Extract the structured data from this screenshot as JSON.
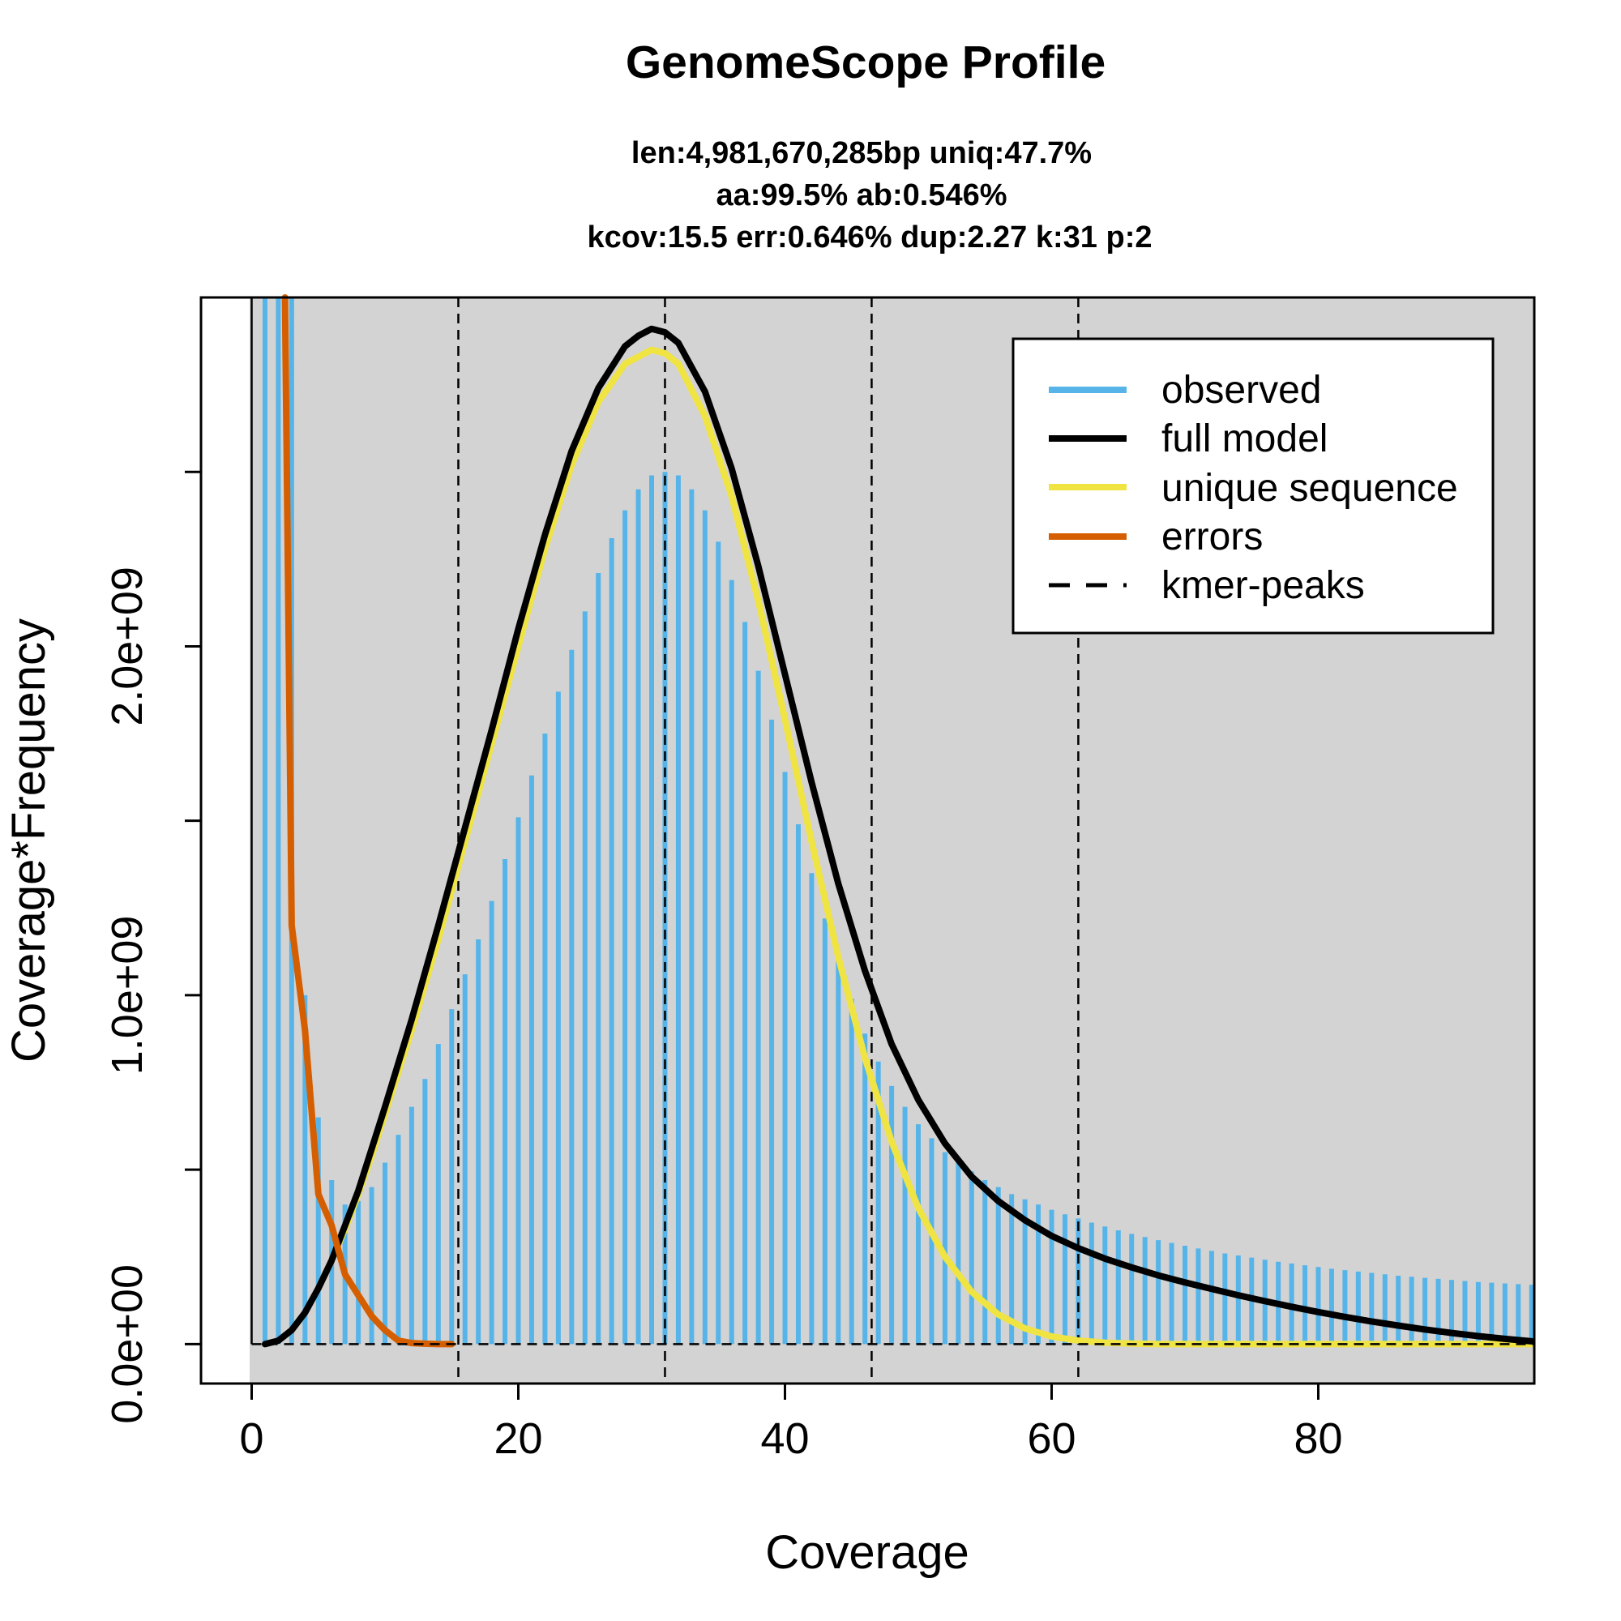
{
  "chart_data": {
    "type": "line",
    "title": "GenomeScope Profile",
    "subtitle_lines": [
      "len:4,981,670,285bp uniq:47.7%",
      "aa:99.5% ab:0.546%",
      "kcov:15.5 err:0.646%  dup:2.27  k:31 p:2"
    ],
    "xlabel": "Coverage",
    "ylabel": "Coverage*Frequency",
    "xlim": [
      -3.8,
      96.2
    ],
    "ylim": [
      -113000000,
      3000000000
    ],
    "x_ticks": [
      0,
      20,
      40,
      60,
      80
    ],
    "y_ticks": [
      0,
      500000000,
      1000000000,
      1500000000,
      2000000000,
      2500000000
    ],
    "y_tick_labels": {
      "0": "0.0e+00",
      "1000000000": "1.0e+09",
      "2000000000": "2.0e+09"
    },
    "kmer_peaks": [
      15.5,
      31,
      46.5,
      62
    ],
    "colors": {
      "observed": "#56B4E9",
      "full_model": "#000000",
      "unique_sequence": "#F0E442",
      "errors": "#D55E00",
      "plot_background": "#D3D3D3"
    },
    "observed": {
      "x_start": 1,
      "values": [
        3200000000,
        3200000000,
        3200000000,
        1000000000,
        650000000,
        470000000,
        400000000,
        410000000,
        450000000,
        520000000,
        600000000,
        680000000,
        760000000,
        860000000,
        960000000,
        1060000000,
        1160000000,
        1270000000,
        1390000000,
        1510000000,
        1630000000,
        1750000000,
        1870000000,
        1990000000,
        2100000000,
        2210000000,
        2310000000,
        2390000000,
        2450000000,
        2490000000,
        2500000000,
        2490000000,
        2450000000,
        2390000000,
        2300000000,
        2190000000,
        2070000000,
        1930000000,
        1790000000,
        1640000000,
        1490000000,
        1350000000,
        1220000000,
        1100000000,
        990000000,
        890000000,
        810000000,
        740000000,
        680000000,
        630000000,
        590000000,
        550000000,
        520000000,
        495000000,
        470000000,
        450000000,
        430000000,
        415000000,
        400000000,
        385000000,
        372000000,
        360000000,
        348000000,
        337000000,
        326000000,
        316000000,
        307000000,
        298000000,
        290000000,
        282000000,
        274000000,
        267000000,
        260000000,
        254000000,
        248000000,
        242000000,
        236000000,
        231000000,
        226000000,
        221000000,
        216000000,
        212000000,
        208000000,
        204000000,
        200000000,
        196000000,
        193000000,
        190000000,
        187000000,
        184000000,
        181000000,
        178000000,
        176000000,
        174000000,
        172000000,
        170000000
      ]
    },
    "series": [
      {
        "name": "full model",
        "x": [
          1,
          2,
          3,
          4,
          5,
          6,
          7,
          8,
          9,
          10,
          12,
          14,
          16,
          18,
          20,
          22,
          24,
          26,
          28,
          29,
          30,
          31,
          32,
          34,
          36,
          38,
          40,
          42,
          44,
          46,
          48,
          50,
          52,
          54,
          56,
          58,
          60,
          62,
          64,
          66,
          68,
          70,
          72,
          74,
          76,
          78,
          80,
          82,
          84,
          86,
          88,
          90,
          92,
          94,
          96
        ],
        "values": [
          0,
          10000000,
          40000000,
          90000000,
          160000000,
          240000000,
          340000000,
          440000000,
          560000000,
          680000000,
          930000000,
          1200000000,
          1480000000,
          1760000000,
          2050000000,
          2320000000,
          2560000000,
          2740000000,
          2860000000,
          2890000000,
          2910000000,
          2900000000,
          2870000000,
          2730000000,
          2510000000,
          2230000000,
          1920000000,
          1610000000,
          1320000000,
          1070000000,
          860000000,
          700000000,
          575000000,
          480000000,
          410000000,
          355000000,
          310000000,
          275000000,
          245000000,
          220000000,
          197000000,
          177000000,
          158000000,
          140000000,
          123000000,
          107000000,
          92000000,
          78000000,
          65000000,
          53000000,
          42000000,
          32000000,
          23000000,
          15000000,
          8000000
        ]
      },
      {
        "name": "unique sequence",
        "x": [
          5,
          6,
          7,
          8,
          9,
          10,
          12,
          14,
          16,
          18,
          20,
          22,
          24,
          26,
          28,
          29,
          30,
          31,
          32,
          34,
          36,
          38,
          40,
          42,
          44,
          46,
          48,
          50,
          52,
          54,
          56,
          58,
          60,
          62,
          64,
          66,
          68,
          70,
          72,
          74,
          76,
          78,
          80,
          84,
          88,
          92,
          96
        ],
        "values": [
          160000000,
          240000000,
          330000000,
          430000000,
          540000000,
          660000000,
          900000000,
          1160000000,
          1440000000,
          1720000000,
          2000000000,
          2280000000,
          2520000000,
          2700000000,
          2810000000,
          2830000000,
          2850000000,
          2840000000,
          2810000000,
          2660000000,
          2430000000,
          2130000000,
          1790000000,
          1440000000,
          1110000000,
          820000000,
          580000000,
          390000000,
          250000000,
          150000000,
          85000000,
          45000000,
          22000000,
          10000000,
          4000000,
          1500000,
          0,
          0,
          0,
          0,
          0,
          0,
          0,
          0,
          0,
          0,
          0
        ]
      },
      {
        "name": "errors",
        "x": [
          2.5,
          3,
          4,
          5,
          6,
          7,
          8,
          9,
          10,
          11,
          12,
          13,
          14,
          15
        ],
        "values": [
          3200000000,
          1200000000,
          900000000,
          430000000,
          340000000,
          200000000,
          140000000,
          80000000,
          40000000,
          10000000,
          3000000,
          1000000,
          0,
          0
        ]
      }
    ],
    "legend": {
      "position": "top-right",
      "entries": [
        {
          "label": "observed",
          "style": "solid"
        },
        {
          "label": "full model",
          "style": "solid"
        },
        {
          "label": "unique sequence",
          "style": "solid"
        },
        {
          "label": "errors",
          "style": "solid"
        },
        {
          "label": "kmer-peaks",
          "style": "dashed"
        }
      ]
    }
  }
}
